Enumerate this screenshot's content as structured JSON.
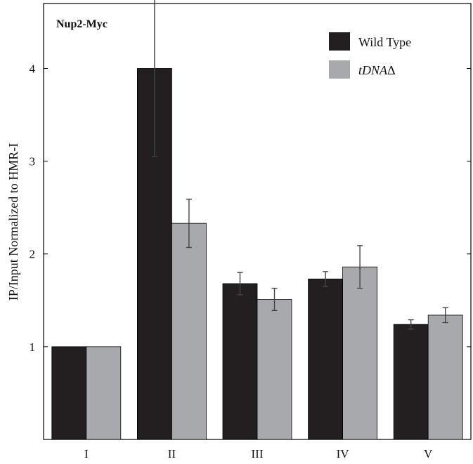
{
  "chart_data": {
    "type": "bar",
    "title": "Nup2-Myc",
    "ylabel": "IP/Input Normalized to HMR-I",
    "xlabel": "",
    "categories": [
      "I",
      "II",
      "III",
      "IV",
      "V"
    ],
    "ylim": [
      0,
      4.7
    ],
    "yticks": [
      1,
      2,
      3,
      4
    ],
    "series": [
      {
        "name": "Wild Type",
        "color": "#231f20",
        "values": [
          1.0,
          4.0,
          1.68,
          1.73,
          1.24
        ],
        "errors": [
          0,
          0.95,
          0.12,
          0.08,
          0.05
        ]
      },
      {
        "name": "tDNAΔ",
        "name_italic_part": "tDNA",
        "name_symbol_part": "Δ",
        "color": "#a7a9ac",
        "values": [
          1.0,
          2.33,
          1.51,
          1.86,
          1.34
        ],
        "errors": [
          0,
          0.26,
          0.12,
          0.23,
          0.08
        ]
      }
    ],
    "legend_position": "top-right",
    "grid": false
  }
}
